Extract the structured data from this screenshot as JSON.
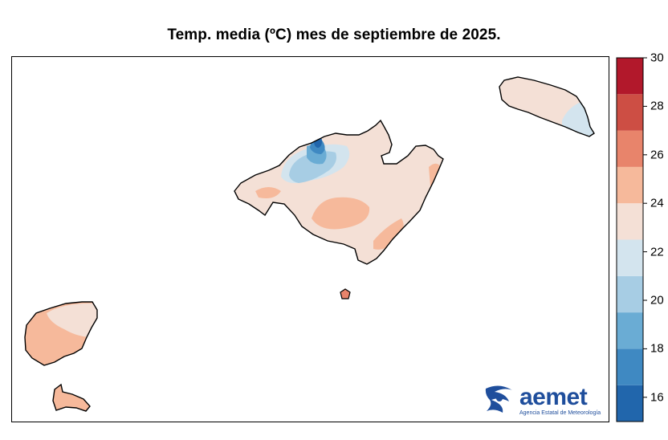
{
  "title": "Temp. media (ºC) mes de septiembre de 2025.",
  "colorbar": {
    "ticks": [
      "16",
      "18",
      "20",
      "22",
      "24",
      "26",
      "28",
      "30"
    ],
    "min": 15,
    "max": 30,
    "bins": [
      {
        "from": 15,
        "to": 16.5,
        "color": "#2166ac"
      },
      {
        "from": 16.5,
        "to": 18,
        "color": "#3f89c2"
      },
      {
        "from": 18,
        "to": 19.5,
        "color": "#6aacd4"
      },
      {
        "from": 19.5,
        "to": 21,
        "color": "#a7cde4"
      },
      {
        "from": 21,
        "to": 22.5,
        "color": "#d3e4ee"
      },
      {
        "from": 22.5,
        "to": 24,
        "color": "#f4e0d6"
      },
      {
        "from": 24,
        "to": 25.5,
        "color": "#f6b99b"
      },
      {
        "from": 25.5,
        "to": 27,
        "color": "#e8846b"
      },
      {
        "from": 27,
        "to": 28.5,
        "color": "#cd4e44"
      },
      {
        "from": 28.5,
        "to": 30,
        "color": "#b2182b"
      }
    ]
  },
  "map": {
    "islands": [
      "Mallorca",
      "Menorca",
      "Ibiza",
      "Formentera",
      "Cabrera"
    ]
  },
  "logo": {
    "name": "aemet",
    "subtitle": "Agencia Estatal de Meteorología",
    "color": "#1f4e9c"
  }
}
